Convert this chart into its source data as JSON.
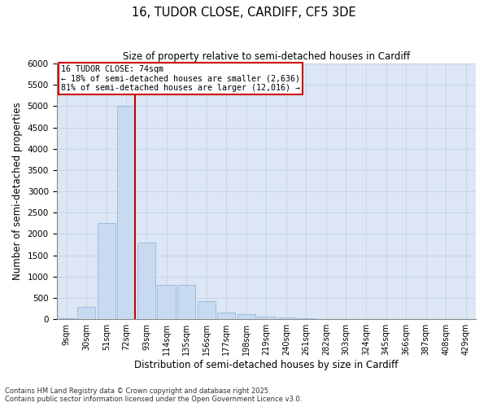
{
  "title1": "16, TUDOR CLOSE, CARDIFF, CF5 3DE",
  "title2": "Size of property relative to semi-detached houses in Cardiff",
  "xlabel": "Distribution of semi-detached houses by size in Cardiff",
  "ylabel": "Number of semi-detached properties",
  "categories": [
    "9sqm",
    "30sqm",
    "51sqm",
    "72sqm",
    "93sqm",
    "114sqm",
    "135sqm",
    "156sqm",
    "177sqm",
    "198sqm",
    "219sqm",
    "240sqm",
    "261sqm",
    "282sqm",
    "303sqm",
    "324sqm",
    "345sqm",
    "366sqm",
    "387sqm",
    "408sqm",
    "429sqm"
  ],
  "values": [
    20,
    300,
    2250,
    5000,
    1800,
    800,
    800,
    430,
    160,
    120,
    60,
    40,
    15,
    10,
    5,
    3,
    2,
    1,
    0,
    0,
    0
  ],
  "bar_color": "#c8daf0",
  "bar_edge_color": "#8ab0d8",
  "grid_color": "#c8d4e8",
  "bg_color": "#dce6f5",
  "property_label": "16 TUDOR CLOSE: 74sqm",
  "pct_smaller": 18,
  "pct_larger": 81,
  "n_smaller": "2,636",
  "n_larger": "12,016",
  "vline_color": "#cc0000",
  "annotation_box_color": "#cc0000",
  "ylim": [
    0,
    6000
  ],
  "yticks": [
    0,
    500,
    1000,
    1500,
    2000,
    2500,
    3000,
    3500,
    4000,
    4500,
    5000,
    5500,
    6000
  ],
  "footer1": "Contains HM Land Registry data © Crown copyright and database right 2025.",
  "footer2": "Contains public sector information licensed under the Open Government Licence v3.0."
}
